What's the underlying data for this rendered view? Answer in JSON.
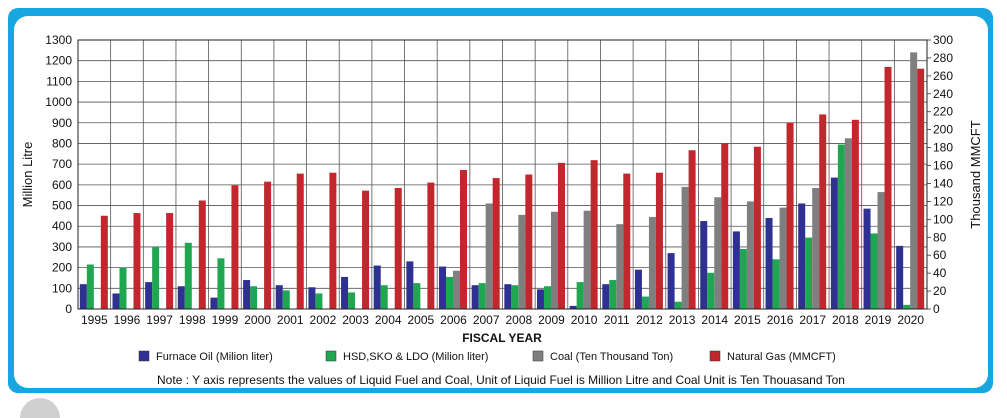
{
  "colors": {
    "frame": "#18a6e0",
    "furnace": "#2e3192",
    "hsd": "#1fa651",
    "coal": "#7f7f7f",
    "gas": "#c1272d"
  },
  "note": "Note : Y axis represents the values of Liquid Fuel and Coal, Unit of Liquid Fuel is Million Litre and Coal Unit is Ten Thouasand Ton",
  "chart_data": {
    "type": "bar",
    "xlabel": "FISCAL YEAR",
    "ylabel": "Million Litre",
    "y2label": "Thousand MMCFT",
    "ylim": [
      0,
      1300
    ],
    "y2lim": [
      0,
      300
    ],
    "yticks": [
      "0",
      "100",
      "200",
      "300",
      "400",
      "500",
      "600",
      "700",
      "800",
      "900",
      "1000",
      "1100",
      "1200",
      "1300"
    ],
    "y2ticks": [
      "0",
      "20",
      "40",
      "60",
      "80",
      "100",
      "120",
      "140",
      "160",
      "180",
      "200",
      "220",
      "240",
      "260",
      "280",
      "300"
    ],
    "legend_position": "bottom",
    "categories": [
      "1995",
      "1996",
      "1997",
      "1998",
      "1999",
      "2000",
      "2001",
      "2002",
      "2003",
      "2004",
      "2005",
      "2006",
      "2007",
      "2008",
      "2009",
      "2010",
      "2011",
      "2012",
      "2013",
      "2014",
      "2015",
      "2016",
      "2017",
      "2018",
      "2019",
      "2020"
    ],
    "series": [
      {
        "name": "Furnace Oil (Milion liter)",
        "axis": "left",
        "color": "#2e3192",
        "values": [
          120,
          75,
          130,
          110,
          55,
          140,
          115,
          105,
          155,
          210,
          230,
          205,
          115,
          120,
          95,
          15,
          120,
          190,
          270,
          425,
          375,
          440,
          510,
          635,
          485,
          305
        ]
      },
      {
        "name": "HSD,SKO & LDO (Milion liter)",
        "axis": "left",
        "color": "#1fa651",
        "values": [
          215,
          200,
          300,
          320,
          245,
          110,
          90,
          75,
          80,
          115,
          125,
          155,
          125,
          115,
          110,
          130,
          140,
          60,
          35,
          175,
          290,
          240,
          345,
          795,
          365,
          20
        ]
      },
      {
        "name": "Coal (Ten Thousand Ton)",
        "axis": "left",
        "color": "#7f7f7f",
        "values": [
          0,
          0,
          0,
          0,
          0,
          0,
          0,
          0,
          0,
          0,
          0,
          185,
          510,
          455,
          470,
          475,
          410,
          445,
          590,
          540,
          520,
          490,
          585,
          825,
          565,
          1240
        ]
      },
      {
        "name": "Natural Gas (MMCFT)",
        "axis": "right",
        "color": "#c1272d",
        "values": [
          104,
          107,
          107,
          121,
          138,
          142,
          151,
          152,
          132,
          135,
          141,
          155,
          146,
          150,
          163,
          166,
          151,
          152,
          177,
          185,
          181,
          208,
          217,
          211,
          270,
          268
        ]
      }
    ]
  }
}
